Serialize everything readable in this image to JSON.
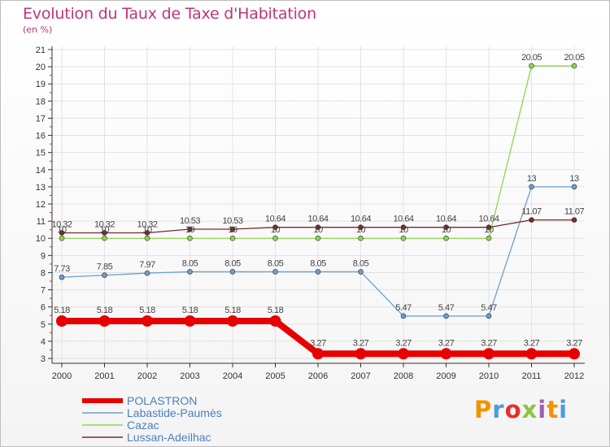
{
  "title": "Evolution du Taux de Taxe d'Habitation",
  "subtitle": "(en %)",
  "logo_text": "Proxiti",
  "chart_data": {
    "type": "line",
    "title": "Evolution du Taux de Taxe d'Habitation",
    "ylabel": "(en %)",
    "xlabel": "",
    "x": [
      "2000",
      "2001",
      "2002",
      "2003",
      "2004",
      "2005",
      "2006",
      "2007",
      "2008",
      "2009",
      "2010",
      "2011",
      "2012"
    ],
    "ylim": [
      3,
      21
    ],
    "yticks": [
      3,
      4,
      5,
      6,
      7,
      8,
      9,
      10,
      11,
      12,
      13,
      14,
      15,
      16,
      17,
      18,
      19,
      20,
      21
    ],
    "grid": true,
    "legend_position": "bottom-left",
    "series": [
      {
        "name": "POLASTRON",
        "color": "#e60000",
        "values": [
          5.18,
          5.18,
          5.18,
          5.18,
          5.18,
          5.18,
          3.27,
          3.27,
          3.27,
          3.27,
          3.27,
          3.27,
          3.27
        ],
        "labels": [
          "5.18",
          "5.18",
          "5.18",
          "5.18",
          "5.18",
          "5.18",
          "3.27",
          "3.27",
          "3.27",
          "3.27",
          "3.27",
          "3.27",
          "3.27"
        ]
      },
      {
        "name": "Labastide-Paumès",
        "color": "#6a9fd0",
        "values": [
          7.73,
          7.85,
          7.97,
          8.05,
          8.05,
          8.05,
          8.05,
          8.05,
          5.47,
          5.47,
          5.47,
          13,
          13
        ],
        "labels": [
          "7.73",
          "7.85",
          "7.97",
          "8.05",
          "8.05",
          "8.05",
          "8.05",
          "8.05",
          "5.47",
          "5.47",
          "5.47",
          "13",
          "13"
        ]
      },
      {
        "name": "Cazac",
        "color": "#8fd44e",
        "values": [
          10,
          10,
          10,
          10,
          10,
          10,
          10,
          10,
          10,
          10,
          10,
          20.05,
          20.05
        ],
        "labels": [
          "10",
          "10",
          "10",
          "10",
          "10",
          "10",
          "10",
          "10",
          "10",
          "10",
          "10",
          "20.05",
          "20.05"
        ]
      },
      {
        "name": "Lussan-Adeilhac",
        "color": "#7a2a2a",
        "values": [
          10.32,
          10.32,
          10.32,
          10.53,
          10.53,
          10.64,
          10.64,
          10.64,
          10.64,
          10.64,
          10.64,
          11.07,
          11.07
        ],
        "labels": [
          "10.32",
          "10.32",
          "10.32",
          "10.53",
          "10.53",
          "10.64",
          "10.64",
          "10.64",
          "10.64",
          "10.64",
          "10.64",
          "11.07",
          "11.07"
        ]
      }
    ]
  }
}
